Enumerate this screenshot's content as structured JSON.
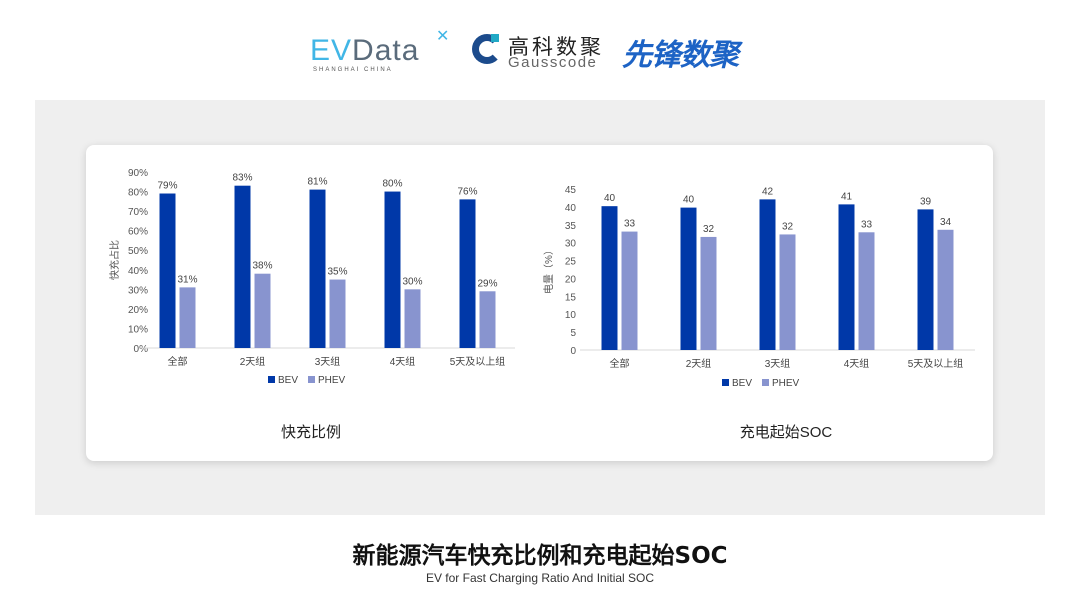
{
  "logos": {
    "evdata": {
      "ev": "EV",
      "rest": "Data",
      "sub": "SHANGHAI CHINA"
    },
    "gausscode": {
      "cn": "高科数聚",
      "en": "Gausscode"
    },
    "xianfeng": "先锋数聚"
  },
  "colors": {
    "BEV": "#0038a8",
    "PHEV": "#8894cf"
  },
  "chart_data": [
    {
      "type": "bar",
      "title": "快充比例",
      "ylabel": "快充占比",
      "xlabel": "",
      "categories": [
        "全部",
        "2天组",
        "3天组",
        "4天组",
        "5天及以上组"
      ],
      "ylim": [
        0,
        90
      ],
      "yticks": [
        "0%",
        "10%",
        "20%",
        "30%",
        "40%",
        "50%",
        "60%",
        "70%",
        "80%",
        "90%"
      ],
      "legend": "bottom",
      "grid": false,
      "series": [
        {
          "name": "BEV",
          "values": [
            79,
            83,
            81,
            80,
            76
          ],
          "labels": [
            "79%",
            "83%",
            "81%",
            "80%",
            "76%"
          ]
        },
        {
          "name": "PHEV",
          "values": [
            31,
            38,
            35,
            30,
            29
          ],
          "labels": [
            "31%",
            "38%",
            "35%",
            "30%",
            "29%"
          ]
        }
      ]
    },
    {
      "type": "bar",
      "title": "充电起始SOC",
      "ylabel": "电量（%）",
      "xlabel": "",
      "categories": [
        "全部",
        "2天组",
        "3天组",
        "4天组",
        "5天及以上组"
      ],
      "ylim": [
        0,
        45
      ],
      "yticks": [
        "0",
        "5",
        "10",
        "15",
        "20",
        "25",
        "30",
        "35",
        "40",
        "45"
      ],
      "legend": "bottom",
      "grid": false,
      "series": [
        {
          "name": "BEV",
          "values": [
            40.2,
            39.8,
            42.1,
            40.7,
            39.3
          ],
          "labels": [
            "40",
            "40",
            "42",
            "41",
            "39"
          ]
        },
        {
          "name": "PHEV",
          "values": [
            33.1,
            31.6,
            32.3,
            32.9,
            33.6
          ],
          "labels": [
            "33",
            "32",
            "32",
            "33",
            "34"
          ]
        }
      ]
    }
  ],
  "footer": {
    "title": "新能源汽车快充比例和充电起始SOC",
    "subtitle": "EV for Fast Charging Ratio And Initial SOC"
  }
}
